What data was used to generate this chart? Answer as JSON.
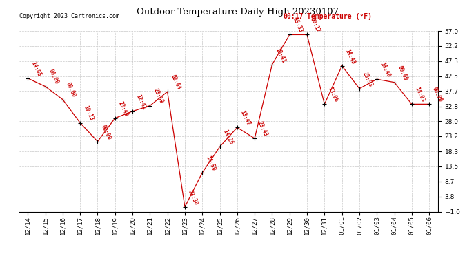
{
  "title": "Outdoor Temperature Daily High 20230107",
  "copyright": "Copyright 2023 Cartronics.com",
  "legend_time": "00:17",
  "legend_label": "Temperature (°F)",
  "background_color": "#ffffff",
  "line_color": "#cc0000",
  "grid_color": "#c8c8c8",
  "ylim": [
    -1.0,
    57.0
  ],
  "yticks": [
    -1.0,
    3.8,
    8.7,
    13.5,
    18.3,
    23.2,
    28.0,
    32.8,
    37.7,
    42.5,
    47.3,
    52.2,
    57.0
  ],
  "data_points": [
    {
      "date": "12/14",
      "value": 41.8,
      "label": "14:05"
    },
    {
      "date": "12/15",
      "value": 39.2,
      "label": "00:00"
    },
    {
      "date": "12/16",
      "value": 35.0,
      "label": "00:00"
    },
    {
      "date": "12/17",
      "value": 27.5,
      "label": "10:13"
    },
    {
      "date": "12/18",
      "value": 21.5,
      "label": "00:00"
    },
    {
      "date": "12/19",
      "value": 29.0,
      "label": "23:49"
    },
    {
      "date": "12/20",
      "value": 31.2,
      "label": "12:41"
    },
    {
      "date": "12/21",
      "value": 33.0,
      "label": "23:59"
    },
    {
      "date": "12/22",
      "value": 37.5,
      "label": "02:04"
    },
    {
      "date": "12/23",
      "value": 0.5,
      "label": "23:30"
    },
    {
      "date": "12/24",
      "value": 11.5,
      "label": "14:50"
    },
    {
      "date": "12/25",
      "value": 19.8,
      "label": "14:26"
    },
    {
      "date": "12/26",
      "value": 26.0,
      "label": "13:47"
    },
    {
      "date": "12/27",
      "value": 22.5,
      "label": "23:43"
    },
    {
      "date": "12/28",
      "value": 46.2,
      "label": "13:41"
    },
    {
      "date": "12/29",
      "value": 55.8,
      "label": "15:33"
    },
    {
      "date": "12/30",
      "value": 55.8,
      "label": "00:17"
    },
    {
      "date": "12/31",
      "value": 33.5,
      "label": "13:06"
    },
    {
      "date": "01/01",
      "value": 45.8,
      "label": "14:43"
    },
    {
      "date": "01/02",
      "value": 38.5,
      "label": "23:53"
    },
    {
      "date": "01/03",
      "value": 41.5,
      "label": "18:40"
    },
    {
      "date": "01/04",
      "value": 40.5,
      "label": "00:00"
    },
    {
      "date": "01/05",
      "value": 33.5,
      "label": "14:03"
    },
    {
      "date": "01/06",
      "value": 33.5,
      "label": "00:00"
    }
  ]
}
